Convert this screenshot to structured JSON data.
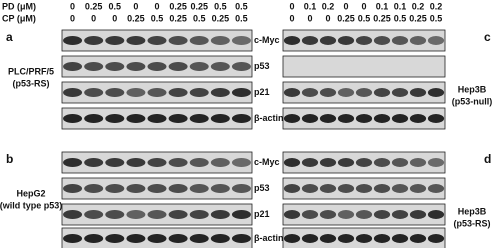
{
  "header": {
    "pd_label": "PD (μM)",
    "cp_label": "CP (μM)",
    "left": {
      "pd": [
        "0",
        "0.25",
        "0.5",
        "0",
        "0",
        "0.25",
        "0.25",
        "0.5",
        "0.5"
      ],
      "cp": [
        "0",
        "0",
        "0",
        "0.25",
        "0.5",
        "0.25",
        "0.5",
        "0.25",
        "0.5"
      ]
    },
    "right": {
      "pd": [
        "0",
        "0.1",
        "0.2",
        "0",
        "0",
        "0.1",
        "0.1",
        "0.2",
        "0.2"
      ],
      "cp": [
        "0",
        "0",
        "0",
        "0.25",
        "0.5",
        "0.25",
        "0.5",
        "0.25",
        "0.5"
      ]
    }
  },
  "panels": [
    {
      "letter": "a",
      "cell_line": [
        "PLC/PRF/5",
        "(p53-RS)"
      ]
    },
    {
      "letter": "b",
      "cell_line": [
        "HepG2",
        "(wild type p53)"
      ]
    },
    {
      "letter": "c",
      "cell_line": [
        "Hep3B",
        "(p53-null)"
      ]
    },
    {
      "letter": "d",
      "cell_line": [
        "Hep3B",
        "(p53-RS)"
      ]
    }
  ],
  "proteins_top": [
    "c-Myc",
    "p53",
    "p21",
    "β-actin"
  ],
  "proteins_bottom": [
    "c-Myc",
    "p53",
    "p21",
    "β-actin"
  ]
}
